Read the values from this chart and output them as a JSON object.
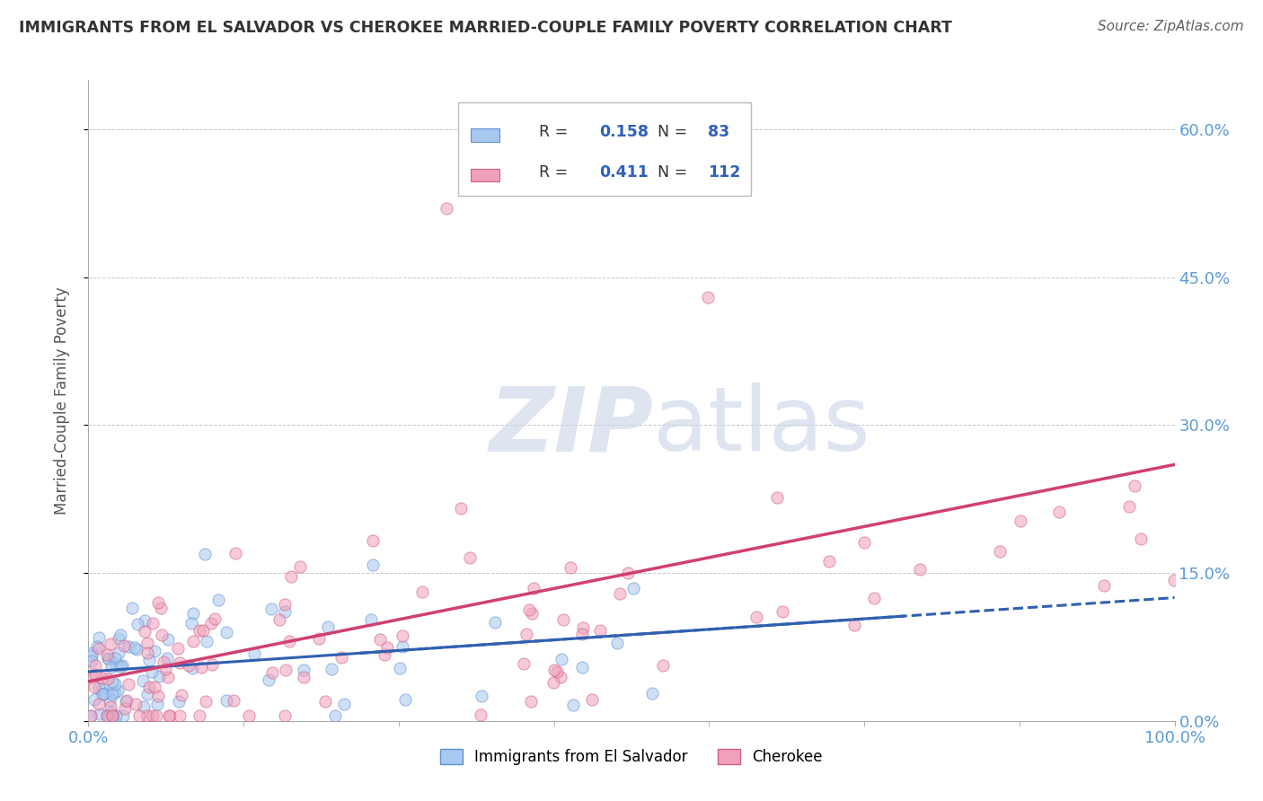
{
  "title": "IMMIGRANTS FROM EL SALVADOR VS CHEROKEE MARRIED-COUPLE FAMILY POVERTY CORRELATION CHART",
  "source": "Source: ZipAtlas.com",
  "ylabel": "Married-Couple Family Poverty",
  "xlabel": "",
  "xlim": [
    0,
    100
  ],
  "ylim": [
    0,
    65
  ],
  "yticks": [
    0,
    15,
    30,
    45,
    60
  ],
  "ytick_labels": [
    "0.0%",
    "15.0%",
    "30.0%",
    "45.0%",
    "60.0%"
  ],
  "xtick_labels": [
    "0.0%",
    "100.0%"
  ],
  "legend1": {
    "R": "0.158",
    "N": "83"
  },
  "legend2": {
    "R": "0.411",
    "N": "112"
  },
  "watermark_zip": "ZIP",
  "watermark_atlas": "atlas",
  "grid_color": "#c8c8c8",
  "bg_color": "#ffffff",
  "title_color": "#333333",
  "blue_dot_fill": "#a8c8f0",
  "blue_dot_edge": "#6090d0",
  "pink_dot_fill": "#f0a0bc",
  "pink_dot_edge": "#d06080",
  "blue_line_color": "#3060b0",
  "pink_line_color": "#d04070",
  "legend_text_color": "#333333",
  "legend_value_color": "#3060b8",
  "axis_tick_color": "#5b9bd5",
  "source_color": "#606060",
  "ylabel_color": "#555555"
}
